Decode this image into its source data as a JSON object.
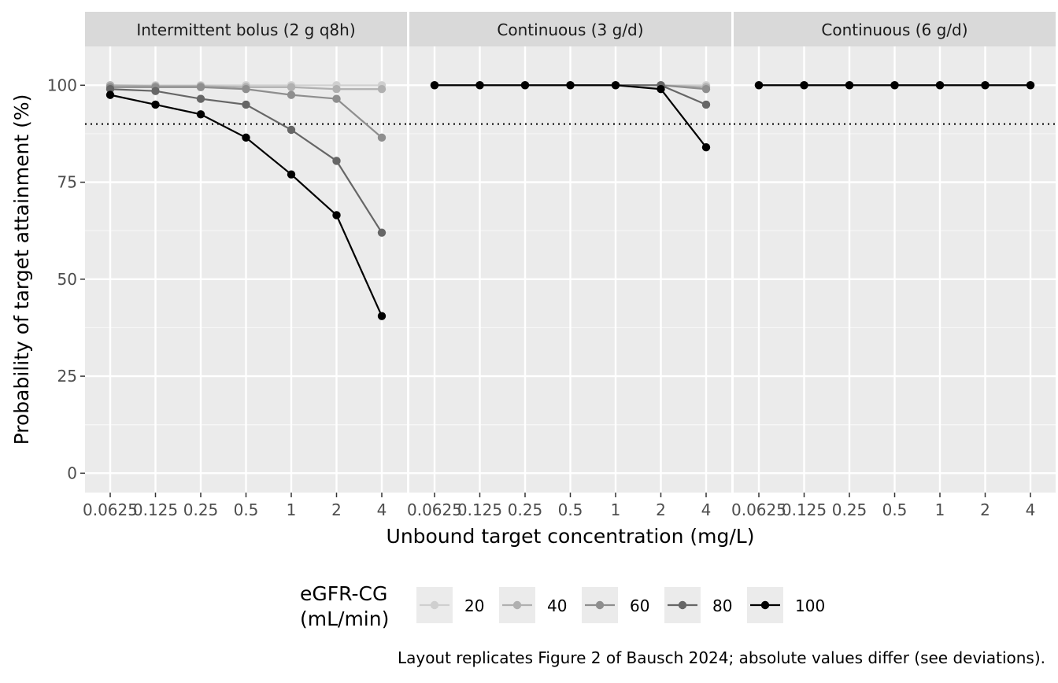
{
  "chart_data": {
    "type": "line",
    "ylabel": "Probability of target attainment (%)",
    "xlabel": "Unbound target concentration (mg/L)",
    "x": [
      "0.0625",
      "0.125",
      "0.25",
      "0.5",
      "1",
      "2",
      "4"
    ],
    "y_ticks": [
      "0",
      "25",
      "50",
      "75",
      "100"
    ],
    "ylim": [
      -5,
      110
    ],
    "reference_line": {
      "y": 90,
      "style": "dotted"
    },
    "grid": true,
    "legend": {
      "title": "eGFR-CG\n(mL/min)",
      "position": "bottom",
      "entries": [
        {
          "name": "20",
          "color": "#cfcfcf"
        },
        {
          "name": "40",
          "color": "#b0b0b0"
        },
        {
          "name": "60",
          "color": "#8e8e8e"
        },
        {
          "name": "80",
          "color": "#666666"
        },
        {
          "name": "100",
          "color": "#000000"
        }
      ]
    },
    "panels": [
      {
        "title": "Intermittent bolus (2 g q8h)",
        "series": [
          {
            "name": "20",
            "values": [
              100,
              100,
              100,
              100,
              100,
              100,
              100
            ]
          },
          {
            "name": "40",
            "values": [
              100,
              99.8,
              99.8,
              99.5,
              99.5,
              99,
              99
            ]
          },
          {
            "name": "60",
            "values": [
              99.5,
              99.5,
              99.5,
              99,
              97.5,
              96.5,
              86.5
            ]
          },
          {
            "name": "80",
            "values": [
              99,
              98.5,
              96.5,
              95,
              88.5,
              80.5,
              62
            ]
          },
          {
            "name": "100",
            "values": [
              97.5,
              95,
              92.5,
              86.5,
              77,
              66.5,
              40.5
            ]
          }
        ]
      },
      {
        "title": "Continuous (3 g/d)",
        "series": [
          {
            "name": "20",
            "values": [
              100,
              100,
              100,
              100,
              100,
              100,
              100
            ]
          },
          {
            "name": "40",
            "values": [
              100,
              100,
              100,
              100,
              100,
              100,
              99.5
            ]
          },
          {
            "name": "60",
            "values": [
              100,
              100,
              100,
              100,
              100,
              100,
              99
            ]
          },
          {
            "name": "80",
            "values": [
              100,
              100,
              100,
              100,
              100,
              100,
              95
            ]
          },
          {
            "name": "100",
            "values": [
              100,
              100,
              100,
              100,
              100,
              99,
              84
            ]
          }
        ]
      },
      {
        "title": "Continuous (6 g/d)",
        "series": [
          {
            "name": "20",
            "values": [
              100,
              100,
              100,
              100,
              100,
              100,
              100
            ]
          },
          {
            "name": "40",
            "values": [
              100,
              100,
              100,
              100,
              100,
              100,
              100
            ]
          },
          {
            "name": "60",
            "values": [
              100,
              100,
              100,
              100,
              100,
              100,
              100
            ]
          },
          {
            "name": "80",
            "values": [
              100,
              100,
              100,
              100,
              100,
              100,
              100
            ]
          },
          {
            "name": "100",
            "values": [
              100,
              100,
              100,
              100,
              100,
              100,
              100
            ]
          }
        ]
      }
    ],
    "caption": "Layout replicates Figure 2 of Bausch 2024; absolute values differ (see deviations).",
    "colors": {
      "panel_bg": "#ebebeb",
      "strip_bg": "#d9d9d9",
      "grid": "#ffffff"
    }
  }
}
